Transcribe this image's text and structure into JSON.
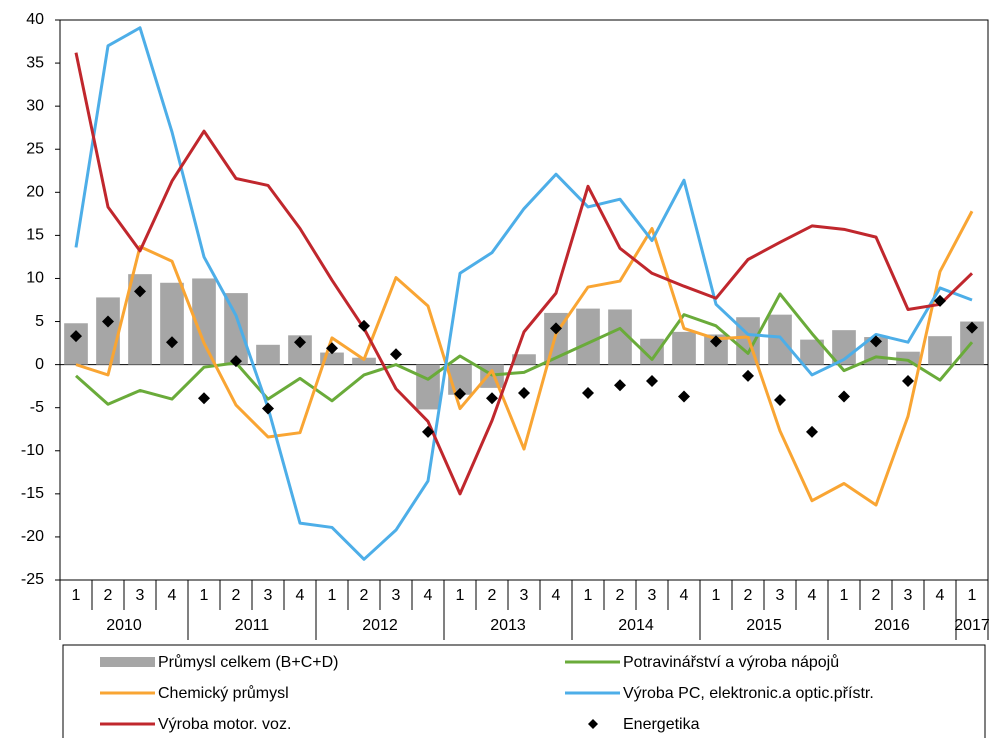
{
  "chart_data": {
    "type": "combo",
    "categories": [
      "1",
      "2",
      "3",
      "4",
      "1",
      "2",
      "3",
      "4",
      "1",
      "2",
      "3",
      "4",
      "1",
      "2",
      "3",
      "4",
      "1",
      "2",
      "3",
      "4",
      "1",
      "2",
      "3",
      "4",
      "1",
      "2",
      "3",
      "4",
      "1"
    ],
    "groups": [
      "2010",
      "2011",
      "2012",
      "2013",
      "2014",
      "2015",
      "2016",
      "2017"
    ],
    "ylim": [
      -25,
      40
    ],
    "yticks": [
      -25,
      -20,
      -15,
      -10,
      -5,
      0,
      5,
      10,
      15,
      20,
      25,
      30,
      35,
      40
    ],
    "series": [
      {
        "name": "Průmysl celkem (B+C+D)",
        "kind": "bar",
        "color": "#a6a6a6",
        "values": [
          4.8,
          7.8,
          10.5,
          9.5,
          10,
          8.3,
          2.3,
          3.4,
          1.4,
          0.8,
          0,
          -5.2,
          -3.5,
          -2.7,
          1.2,
          6,
          6.5,
          6.4,
          3,
          3.8,
          3.5,
          5.5,
          5.8,
          2.9,
          4,
          3.2,
          1.5,
          3.3,
          5
        ]
      },
      {
        "name": "Potravinářství a výroba nápojů",
        "kind": "line",
        "color": "#6aab3a",
        "values": [
          -1.3,
          -4.6,
          -3,
          -4,
          -0.3,
          0.2,
          -4,
          -1.6,
          -4.2,
          -1.2,
          0,
          -1.7,
          1,
          -1.2,
          -0.9,
          0.8,
          2.5,
          4.2,
          0.6,
          5.8,
          4.5,
          1.3,
          8.2,
          3.6,
          -0.7,
          0.9,
          0.5,
          -1.8,
          2.6
        ]
      },
      {
        "name": "Chemický průmysl",
        "kind": "line",
        "color": "#f9a533",
        "values": [
          0,
          -1.2,
          13.7,
          12,
          2.5,
          -4.7,
          -8.4,
          -7.9,
          3.1,
          0.6,
          10.1,
          6.8,
          -5.1,
          -0.7,
          -9.8,
          3.6,
          9,
          9.7,
          15.8,
          4.2,
          3,
          3.2,
          -7.7,
          -15.8,
          -13.8,
          -16.3,
          -6,
          10.8,
          17.8
        ]
      },
      {
        "name": "Výroba PC, elektronic.a optic.přístr.",
        "kind": "line",
        "color": "#4daee8",
        "values": [
          13.6,
          37,
          39.1,
          27,
          12.5,
          5.7,
          -5,
          -18.4,
          -18.9,
          -22.6,
          -19.2,
          -13.5,
          10.6,
          13,
          18.1,
          22.1,
          18.3,
          19.2,
          14.4,
          21.4,
          7,
          3.5,
          3.2,
          -1.2,
          0.6,
          3.5,
          2.6,
          8.9,
          7.5
        ]
      },
      {
        "name": "Výroba motor. voz.",
        "kind": "line",
        "color": "#c0272d",
        "values": [
          36.2,
          18.3,
          13.2,
          21.3,
          27.1,
          21.6,
          20.8,
          15.8,
          9.8,
          4.2,
          -2.8,
          -6.6,
          -15,
          -6.5,
          3.8,
          8.3,
          20.7,
          13.5,
          10.6,
          9.1,
          7.7,
          12.2,
          14.2,
          16.1,
          15.7,
          14.8,
          6.4,
          7,
          10.6
        ]
      },
      {
        "name": "Energetika",
        "kind": "marker",
        "color": "#000000",
        "values": [
          3.3,
          5,
          8.5,
          2.6,
          -3.9,
          0.4,
          -5.1,
          2.6,
          1.9,
          4.5,
          1.2,
          -7.8,
          -3.4,
          -3.9,
          -3.3,
          4.2,
          -3.3,
          -2.4,
          -1.9,
          -3.7,
          2.7,
          -1.3,
          -4.1,
          -7.8,
          -3.7,
          2.7,
          -1.9,
          7.4,
          4.3
        ]
      }
    ]
  }
}
